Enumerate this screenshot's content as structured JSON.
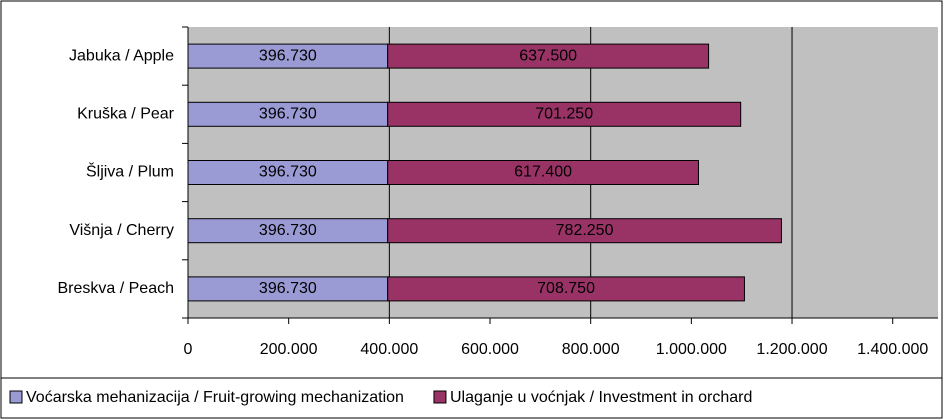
{
  "chart_data": {
    "type": "bar",
    "orientation": "horizontal",
    "stacked": true,
    "categories": [
      "Jabuka / Apple",
      "Kruška / Pear",
      "Šljiva / Plum",
      "Višnja / Cherry",
      "Breskva / Peach"
    ],
    "series": [
      {
        "name": "Voćarska mehanizacija / Fruit-growing mechanization",
        "color": "#9a9ad4",
        "values": [
          396730,
          396730,
          396730,
          396730,
          396730
        ],
        "value_labels": [
          "396.730",
          "396.730",
          "396.730",
          "396.730",
          "396.730"
        ]
      },
      {
        "name": "Ulaganje u voćnjak / Investment in orchard",
        "color": "#993366",
        "values": [
          637500,
          701250,
          617400,
          782250,
          708750
        ],
        "value_labels": [
          "637.500",
          "701.250",
          "617.400",
          "782.250",
          "708.750"
        ]
      }
    ],
    "xlim": [
      0,
      1490000
    ],
    "xticks": [
      0,
      {
        "value": 200000,
        "label": "200.000"
      },
      {
        "value": 400000,
        "label": "400.000"
      },
      {
        "value": 600000,
        "label": "600.000"
      },
      {
        "value": 800000,
        "label": "800.000"
      },
      {
        "value": 1000000,
        "label": "1.000.000"
      },
      {
        "value": 1200000,
        "label": "1.200.000"
      },
      {
        "value": 1400000,
        "label": "1.400.000"
      }
    ],
    "grid": true,
    "legend": "bottom"
  }
}
